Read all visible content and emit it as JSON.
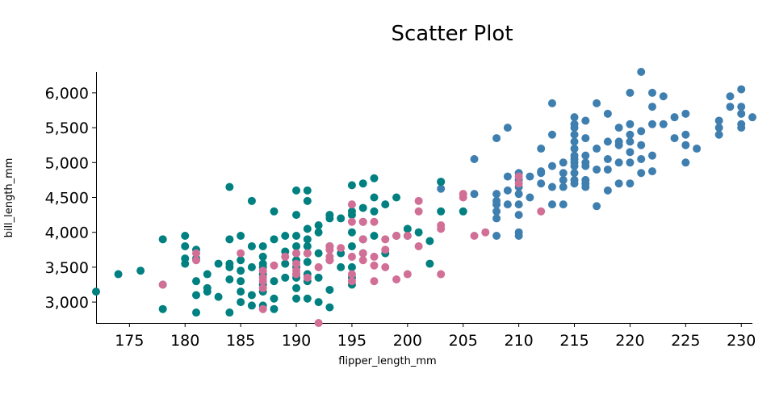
{
  "chart_data": {
    "type": "scatter",
    "title": "Scatter Plot",
    "xlabel": "flipper_length_mm",
    "ylabel": "bill_length_mm",
    "xlim": [
      172,
      231
    ],
    "ylim": [
      2700,
      6300
    ],
    "xticks": [
      175,
      180,
      185,
      190,
      195,
      200,
      205,
      210,
      215,
      220,
      225,
      230
    ],
    "yticks": [
      3000,
      3500,
      4000,
      4500,
      5000,
      5500,
      6000
    ],
    "grid": false,
    "legend": "none",
    "series": [
      {
        "color": "#3f7fb0",
        "points": [
          [
            203,
            4625
          ],
          [
            203,
            4725
          ],
          [
            206,
            4550
          ],
          [
            206,
            5050
          ],
          [
            208,
            3950
          ],
          [
            208,
            4200
          ],
          [
            208,
            4300
          ],
          [
            208,
            4400
          ],
          [
            208,
            4450
          ],
          [
            208,
            4550
          ],
          [
            208,
            5350
          ],
          [
            209,
            4400
          ],
          [
            209,
            4600
          ],
          [
            209,
            4800
          ],
          [
            209,
            5500
          ],
          [
            210,
            3950
          ],
          [
            210,
            4000
          ],
          [
            210,
            4250
          ],
          [
            210,
            4400
          ],
          [
            210,
            4550
          ],
          [
            210,
            4650
          ],
          [
            210,
            4750
          ],
          [
            210,
            4850
          ],
          [
            211,
            4800
          ],
          [
            211,
            4500
          ],
          [
            212,
            4700
          ],
          [
            212,
            4850
          ],
          [
            212,
            4875
          ],
          [
            212,
            5200
          ],
          [
            213,
            4400
          ],
          [
            213,
            4650
          ],
          [
            213,
            4950
          ],
          [
            213,
            5400
          ],
          [
            213,
            5850
          ],
          [
            214,
            4400
          ],
          [
            214,
            4650
          ],
          [
            214,
            4750
          ],
          [
            214,
            4850
          ],
          [
            214,
            5000
          ],
          [
            215,
            4700
          ],
          [
            215,
            4750
          ],
          [
            215,
            4850
          ],
          [
            215,
            4950
          ],
          [
            215,
            5000
          ],
          [
            215,
            5050
          ],
          [
            215,
            5100
          ],
          [
            215,
            5200
          ],
          [
            215,
            5300
          ],
          [
            215,
            5400
          ],
          [
            215,
            5500
          ],
          [
            215,
            5550
          ],
          [
            215,
            5650
          ],
          [
            216,
            4650
          ],
          [
            216,
            4700
          ],
          [
            216,
            4750
          ],
          [
            216,
            4950
          ],
          [
            216,
            5000
          ],
          [
            216,
            5100
          ],
          [
            216,
            5350
          ],
          [
            216,
            5600
          ],
          [
            217,
            4375
          ],
          [
            217,
            4900
          ],
          [
            217,
            5200
          ],
          [
            217,
            5850
          ],
          [
            218,
            4600
          ],
          [
            218,
            4900
          ],
          [
            218,
            5050
          ],
          [
            218,
            5300
          ],
          [
            218,
            5700
          ],
          [
            219,
            4700
          ],
          [
            219,
            5000
          ],
          [
            219,
            5250
          ],
          [
            219,
            5300
          ],
          [
            219,
            5500
          ],
          [
            220,
            4700
          ],
          [
            220,
            5000
          ],
          [
            220,
            5150
          ],
          [
            220,
            5300
          ],
          [
            220,
            5400
          ],
          [
            220,
            5550
          ],
          [
            220,
            6000
          ],
          [
            221,
            4850
          ],
          [
            221,
            5050
          ],
          [
            221,
            5250
          ],
          [
            221,
            5450
          ],
          [
            221,
            6300
          ],
          [
            222,
            4875
          ],
          [
            222,
            5100
          ],
          [
            222,
            5550
          ],
          [
            222,
            5800
          ],
          [
            222,
            6000
          ],
          [
            223,
            5550
          ],
          [
            223,
            5950
          ],
          [
            224,
            5350
          ],
          [
            224,
            5650
          ],
          [
            225,
            5000
          ],
          [
            225,
            5250
          ],
          [
            225,
            5400
          ],
          [
            225,
            5700
          ],
          [
            226,
            5200
          ],
          [
            228,
            5400
          ],
          [
            228,
            5500
          ],
          [
            228,
            5600
          ],
          [
            229,
            5800
          ],
          [
            229,
            5950
          ],
          [
            230,
            5500
          ],
          [
            230,
            5550
          ],
          [
            230,
            5700
          ],
          [
            230,
            5800
          ],
          [
            230,
            6050
          ],
          [
            231,
            5650
          ]
        ]
      },
      {
        "color": "#008080",
        "points": [
          [
            172,
            3150
          ],
          [
            174,
            3400
          ],
          [
            176,
            3450
          ],
          [
            178,
            2900
          ],
          [
            178,
            3250
          ],
          [
            178,
            3900
          ],
          [
            180,
            3550
          ],
          [
            180,
            3625
          ],
          [
            180,
            3800
          ],
          [
            180,
            3950
          ],
          [
            181,
            2850
          ],
          [
            181,
            3100
          ],
          [
            181,
            3300
          ],
          [
            181,
            3625
          ],
          [
            181,
            3750
          ],
          [
            182,
            3200
          ],
          [
            182,
            3400
          ],
          [
            182,
            3150
          ],
          [
            183,
            3075
          ],
          [
            183,
            3550
          ],
          [
            184,
            2850
          ],
          [
            184,
            3325
          ],
          [
            184,
            3500
          ],
          [
            184,
            3550
          ],
          [
            184,
            3900
          ],
          [
            184,
            4650
          ],
          [
            185,
            3000
          ],
          [
            185,
            3150
          ],
          [
            185,
            3300
          ],
          [
            185,
            3450
          ],
          [
            185,
            3600
          ],
          [
            185,
            3950
          ],
          [
            186,
            2950
          ],
          [
            186,
            3100
          ],
          [
            186,
            3500
          ],
          [
            186,
            3800
          ],
          [
            186,
            4450
          ],
          [
            187,
            2950
          ],
          [
            187,
            3150
          ],
          [
            187,
            3250
          ],
          [
            187,
            3400
          ],
          [
            187,
            3500
          ],
          [
            187,
            3550
          ],
          [
            187,
            3650
          ],
          [
            187,
            3800
          ],
          [
            188,
            2900
          ],
          [
            188,
            3050
          ],
          [
            188,
            3300
          ],
          [
            188,
            3900
          ],
          [
            188,
            4300
          ],
          [
            189,
            3350
          ],
          [
            189,
            3550
          ],
          [
            189,
            3725
          ],
          [
            189,
            3950
          ],
          [
            190,
            3050
          ],
          [
            190,
            3200
          ],
          [
            190,
            3350
          ],
          [
            190,
            3400
          ],
          [
            190,
            3500
          ],
          [
            190,
            3600
          ],
          [
            190,
            3700
          ],
          [
            190,
            3800
          ],
          [
            190,
            3950
          ],
          [
            190,
            4250
          ],
          [
            190,
            4600
          ],
          [
            191,
            3050
          ],
          [
            191,
            3300
          ],
          [
            191,
            3400
          ],
          [
            191,
            3575
          ],
          [
            191,
            3700
          ],
          [
            191,
            3800
          ],
          [
            191,
            3900
          ],
          [
            191,
            4050
          ],
          [
            191,
            4450
          ],
          [
            191,
            4600
          ],
          [
            192,
            3000
          ],
          [
            192,
            3350
          ],
          [
            192,
            3700
          ],
          [
            192,
            4000
          ],
          [
            192,
            4100
          ],
          [
            193,
            2925
          ],
          [
            193,
            3175
          ],
          [
            193,
            3600
          ],
          [
            193,
            3800
          ],
          [
            193,
            4200
          ],
          [
            193,
            4250
          ],
          [
            194,
            3500
          ],
          [
            194,
            3700
          ],
          [
            194,
            4200
          ],
          [
            195,
            3250
          ],
          [
            195,
            3350
          ],
          [
            195,
            3500
          ],
          [
            195,
            3800
          ],
          [
            195,
            4000
          ],
          [
            195,
            4250
          ],
          [
            195,
            4300
          ],
          [
            195,
            4675
          ],
          [
            196,
            3700
          ],
          [
            196,
            3900
          ],
          [
            196,
            4150
          ],
          [
            196,
            4350
          ],
          [
            196,
            4700
          ],
          [
            197,
            3950
          ],
          [
            197,
            4300
          ],
          [
            197,
            4500
          ],
          [
            197,
            4775
          ],
          [
            198,
            3700
          ],
          [
            198,
            4400
          ],
          [
            199,
            3950
          ],
          [
            199,
            4500
          ],
          [
            200,
            3950
          ],
          [
            200,
            4050
          ],
          [
            201,
            4000
          ],
          [
            202,
            3550
          ],
          [
            202,
            3875
          ],
          [
            203,
            4300
          ],
          [
            203,
            4725
          ],
          [
            205,
            4300
          ]
        ]
      },
      {
        "color": "#d16f96",
        "points": [
          [
            178,
            3250
          ],
          [
            181,
            3600
          ],
          [
            181,
            3700
          ],
          [
            185,
            3700
          ],
          [
            187,
            2900
          ],
          [
            187,
            3200
          ],
          [
            187,
            3300
          ],
          [
            187,
            3350
          ],
          [
            187,
            3450
          ],
          [
            188,
            3525
          ],
          [
            189,
            3650
          ],
          [
            190,
            3400
          ],
          [
            190,
            3450
          ],
          [
            190,
            3550
          ],
          [
            190,
            3700
          ],
          [
            191,
            3350
          ],
          [
            191,
            3700
          ],
          [
            192,
            2700
          ],
          [
            192,
            3500
          ],
          [
            193,
            3600
          ],
          [
            193,
            3650
          ],
          [
            193,
            3750
          ],
          [
            193,
            3800
          ],
          [
            194,
            3775
          ],
          [
            195,
            3300
          ],
          [
            195,
            3400
          ],
          [
            195,
            3650
          ],
          [
            195,
            4150
          ],
          [
            195,
            4400
          ],
          [
            196,
            3600
          ],
          [
            196,
            3700
          ],
          [
            196,
            3900
          ],
          [
            196,
            4150
          ],
          [
            197,
            3300
          ],
          [
            197,
            3525
          ],
          [
            197,
            3650
          ],
          [
            197,
            4150
          ],
          [
            198,
            3500
          ],
          [
            198,
            3750
          ],
          [
            198,
            3900
          ],
          [
            199,
            3325
          ],
          [
            199,
            3950
          ],
          [
            200,
            3400
          ],
          [
            200,
            3950
          ],
          [
            201,
            4300
          ],
          [
            201,
            4450
          ],
          [
            201,
            3800
          ],
          [
            203,
            3400
          ],
          [
            203,
            4050
          ],
          [
            203,
            4100
          ],
          [
            205,
            4500
          ],
          [
            205,
            4550
          ],
          [
            206,
            3950
          ],
          [
            207,
            4000
          ],
          [
            210,
            4700
          ],
          [
            210,
            4800
          ],
          [
            212,
            4300
          ]
        ]
      }
    ]
  }
}
